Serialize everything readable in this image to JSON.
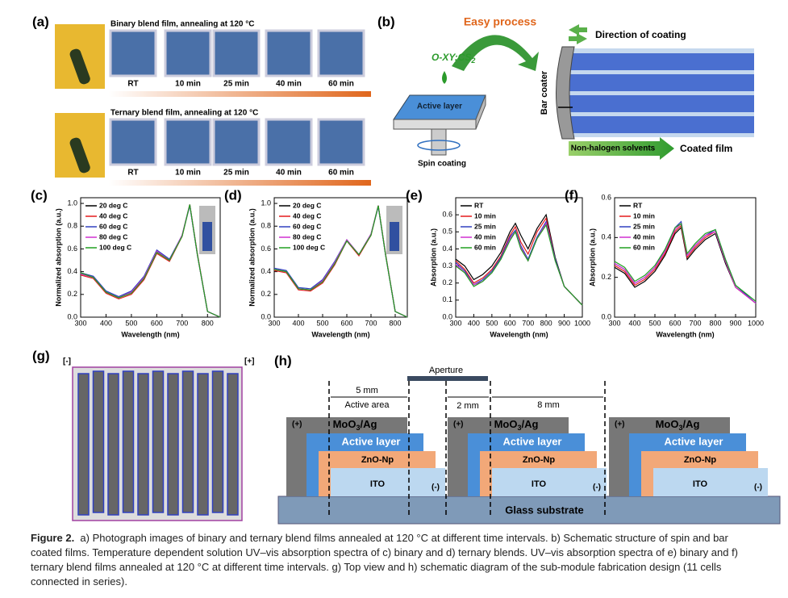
{
  "panel_a": {
    "label": "(a)",
    "rows": [
      {
        "title": "Binary blend film, annealing at 120 °C",
        "times": [
          "RT",
          "10 min",
          "25 min",
          "40 min",
          "60 min"
        ]
      },
      {
        "title": "Ternary blend film, annealing at 120 °C",
        "times": [
          "RT",
          "10 min",
          "25 min",
          "40 min",
          "60 min"
        ]
      }
    ]
  },
  "panel_b": {
    "label": "(b)",
    "easy": "Easy process",
    "solvent": {
      "text": "O-XY:CS",
      "sub": "2"
    },
    "active": "Active layer",
    "spin": "Spin coating",
    "bar": "Bar coater",
    "direction": "Direction of coating",
    "nonhalogen": "Non-halogen solvents",
    "coated": "Coated film"
  },
  "panel_g": {
    "label": "(g)",
    "minus": "[-]",
    "plus": "[+]"
  },
  "panel_h": {
    "label": "(h)",
    "aperture": "Aperture",
    "d5": "5 mm",
    "active_area": "Active area",
    "d2": "2 mm",
    "d8": "8 mm",
    "glass": "Glass substrate",
    "stacks": [
      {
        "plus": "(+)",
        "moo": "MoO",
        "moo_sub": "3",
        "moo_rest": "/Ag",
        "active": "Active layer",
        "zno": "ZnO-Np",
        "ito": "ITO",
        "minus": "(-)"
      },
      {
        "plus": "(+)",
        "moo": "MoO",
        "moo_sub": "3",
        "moo_rest": "/Ag",
        "active": "Active layer",
        "zno": "ZnO-Np",
        "ito": "ITO",
        "minus": "(-)"
      },
      {
        "plus": "(+)",
        "moo": "MoO",
        "moo_sub": "3",
        "moo_rest": "/Ag",
        "active": "Active layer",
        "zno": "ZnO-Np",
        "ito": "ITO",
        "minus": "(-)"
      }
    ]
  },
  "chart_data": [
    {
      "type": "line",
      "label": "(c)",
      "x_label": "Wavelength (nm)",
      "y_label": "Normalized absorption (a.u.)",
      "x": [
        300,
        350,
        400,
        450,
        500,
        550,
        600,
        650,
        700,
        730,
        760,
        800,
        850
      ],
      "xlim": [
        300,
        850
      ],
      "xticks": [
        300,
        400,
        500,
        600,
        700,
        800
      ],
      "ylim": [
        0,
        1.05
      ],
      "yticks": [
        {
          "value": 0,
          "label": "0.0"
        },
        0.2,
        0.4,
        0.6,
        0.8,
        {
          "value": 1,
          "label": "1.0"
        }
      ],
      "series": [
        {
          "name": "20 deg C",
          "color": "#000000",
          "values": [
            0.38,
            0.35,
            0.22,
            0.17,
            0.22,
            0.35,
            0.58,
            0.5,
            0.72,
            0.99,
            0.55,
            0.05,
            0
          ]
        },
        {
          "name": "40 deg C",
          "color": "#e41a1c",
          "values": [
            0.37,
            0.34,
            0.21,
            0.16,
            0.2,
            0.33,
            0.56,
            0.49,
            0.71,
            0.99,
            0.56,
            0.05,
            0
          ]
        },
        {
          "name": "60 deg C",
          "color": "#3040c0",
          "values": [
            0.39,
            0.36,
            0.23,
            0.18,
            0.23,
            0.36,
            0.59,
            0.51,
            0.72,
            0.98,
            0.55,
            0.05,
            0
          ]
        },
        {
          "name": "80 deg C",
          "color": "#d030d0",
          "values": [
            0.38,
            0.35,
            0.22,
            0.17,
            0.22,
            0.35,
            0.58,
            0.5,
            0.72,
            0.99,
            0.55,
            0.05,
            0
          ]
        },
        {
          "name": "100 deg C",
          "color": "#20a020",
          "values": [
            0.39,
            0.35,
            0.22,
            0.17,
            0.21,
            0.34,
            0.57,
            0.5,
            0.71,
            0.99,
            0.55,
            0.05,
            0
          ]
        }
      ]
    },
    {
      "type": "line",
      "label": "(d)",
      "x_label": "Wavelength (nm)",
      "y_label": "Normalized absorption (a.u.)",
      "x": [
        300,
        350,
        400,
        450,
        500,
        550,
        600,
        650,
        700,
        730,
        760,
        800,
        850
      ],
      "xlim": [
        300,
        850
      ],
      "xticks": [
        300,
        400,
        500,
        600,
        700,
        800
      ],
      "ylim": [
        0,
        1.05
      ],
      "yticks": [
        {
          "value": 0,
          "label": "0.0"
        },
        0.2,
        0.4,
        0.6,
        0.8,
        {
          "value": 1,
          "label": "1.0"
        }
      ],
      "series": [
        {
          "name": "20 deg C",
          "color": "#000000",
          "values": [
            0.42,
            0.4,
            0.25,
            0.24,
            0.32,
            0.48,
            0.68,
            0.55,
            0.73,
            0.98,
            0.55,
            0.05,
            0
          ]
        },
        {
          "name": "40 deg C",
          "color": "#e41a1c",
          "values": [
            0.41,
            0.39,
            0.24,
            0.23,
            0.3,
            0.46,
            0.67,
            0.54,
            0.72,
            0.98,
            0.56,
            0.05,
            0
          ]
        },
        {
          "name": "60 deg C",
          "color": "#3040c0",
          "values": [
            0.43,
            0.41,
            0.26,
            0.25,
            0.33,
            0.49,
            0.68,
            0.55,
            0.73,
            0.97,
            0.55,
            0.05,
            0
          ]
        },
        {
          "name": "80 deg C",
          "color": "#d030d0",
          "values": [
            0.42,
            0.4,
            0.25,
            0.24,
            0.32,
            0.48,
            0.68,
            0.55,
            0.73,
            0.98,
            0.55,
            0.05,
            0
          ]
        },
        {
          "name": "100 deg C",
          "color": "#20a020",
          "values": [
            0.42,
            0.4,
            0.25,
            0.24,
            0.31,
            0.47,
            0.67,
            0.55,
            0.72,
            0.98,
            0.55,
            0.05,
            0
          ]
        }
      ]
    },
    {
      "type": "line",
      "label": "(e)",
      "x_label": "Wavelength (nm)",
      "y_label": "Absorption (a.u.)",
      "x": [
        300,
        350,
        400,
        450,
        500,
        550,
        600,
        630,
        660,
        700,
        750,
        800,
        850,
        900,
        1000
      ],
      "xlim": [
        300,
        1000
      ],
      "xticks": [
        300,
        400,
        500,
        600,
        700,
        800,
        900,
        1000
      ],
      "ylim": [
        0,
        0.7
      ],
      "yticks": [
        {
          "value": 0,
          "label": "0.0"
        },
        0.1,
        0.2,
        0.3,
        0.4,
        0.5,
        0.6
      ],
      "series": [
        {
          "name": "RT",
          "color": "#000000",
          "values": [
            0.34,
            0.3,
            0.22,
            0.25,
            0.3,
            0.38,
            0.5,
            0.55,
            0.48,
            0.4,
            0.52,
            0.6,
            0.35,
            0.18,
            0.07
          ]
        },
        {
          "name": "10 min",
          "color": "#e41a1c",
          "values": [
            0.33,
            0.28,
            0.2,
            0.23,
            0.28,
            0.36,
            0.48,
            0.53,
            0.44,
            0.37,
            0.5,
            0.58,
            0.34,
            0.18,
            0.07
          ]
        },
        {
          "name": "25 min",
          "color": "#3040c0",
          "values": [
            0.32,
            0.27,
            0.19,
            0.22,
            0.27,
            0.35,
            0.47,
            0.51,
            0.42,
            0.34,
            0.47,
            0.56,
            0.34,
            0.18,
            0.07
          ]
        },
        {
          "name": "40 min",
          "color": "#d030d0",
          "values": [
            0.31,
            0.26,
            0.19,
            0.21,
            0.26,
            0.34,
            0.46,
            0.5,
            0.41,
            0.33,
            0.46,
            0.55,
            0.33,
            0.18,
            0.07
          ]
        },
        {
          "name": "60 min",
          "color": "#20a020",
          "values": [
            0.3,
            0.26,
            0.18,
            0.21,
            0.26,
            0.34,
            0.45,
            0.5,
            0.4,
            0.33,
            0.46,
            0.54,
            0.33,
            0.18,
            0.07
          ]
        }
      ]
    },
    {
      "type": "line",
      "label": "(f)",
      "x_label": "Wavelength (nm)",
      "y_label": "Absorption (a.u.)",
      "x": [
        300,
        350,
        400,
        450,
        500,
        550,
        600,
        630,
        660,
        700,
        750,
        800,
        850,
        900,
        1000
      ],
      "xlim": [
        300,
        1000
      ],
      "xticks": [
        300,
        400,
        500,
        600,
        700,
        800,
        900,
        1000
      ],
      "ylim": [
        0,
        0.6
      ],
      "yticks": [
        {
          "value": 0,
          "label": "0.0"
        },
        0.2,
        0.4,
        0.6
      ],
      "series": [
        {
          "name": "RT",
          "color": "#000000",
          "values": [
            0.25,
            0.22,
            0.15,
            0.18,
            0.23,
            0.31,
            0.42,
            0.45,
            0.29,
            0.34,
            0.39,
            0.42,
            0.27,
            0.15,
            0.07
          ]
        },
        {
          "name": "10 min",
          "color": "#e41a1c",
          "values": [
            0.26,
            0.23,
            0.16,
            0.19,
            0.24,
            0.32,
            0.43,
            0.46,
            0.3,
            0.35,
            0.4,
            0.43,
            0.28,
            0.15,
            0.07
          ]
        },
        {
          "name": "25 min",
          "color": "#3040c0",
          "values": [
            0.27,
            0.24,
            0.17,
            0.2,
            0.25,
            0.34,
            0.45,
            0.48,
            0.31,
            0.36,
            0.41,
            0.44,
            0.29,
            0.16,
            0.07
          ]
        },
        {
          "name": "40 min",
          "color": "#d030d0",
          "values": [
            0.27,
            0.24,
            0.17,
            0.2,
            0.25,
            0.33,
            0.44,
            0.47,
            0.31,
            0.36,
            0.41,
            0.43,
            0.28,
            0.15,
            0.07
          ]
        },
        {
          "name": "60 min",
          "color": "#20a020",
          "values": [
            0.28,
            0.25,
            0.18,
            0.21,
            0.26,
            0.34,
            0.45,
            0.47,
            0.32,
            0.37,
            0.42,
            0.44,
            0.29,
            0.16,
            0.08
          ]
        }
      ]
    }
  ],
  "caption": {
    "label": "Figure 2.",
    "text": "a) Photograph images of binary and ternary blend films annealed at 120 °C at different time intervals. b) Schematic structure of spin and bar coated films. Temperature dependent solution UV–vis absorption spectra of c) binary and d) ternary blends. UV–vis absorption spectra of e) binary and f) ternary blend films annealed at 120 °C at different time intervals. g) Top view and h) schematic diagram of the sub-module fabrication design (11 cells connected in series)."
  }
}
